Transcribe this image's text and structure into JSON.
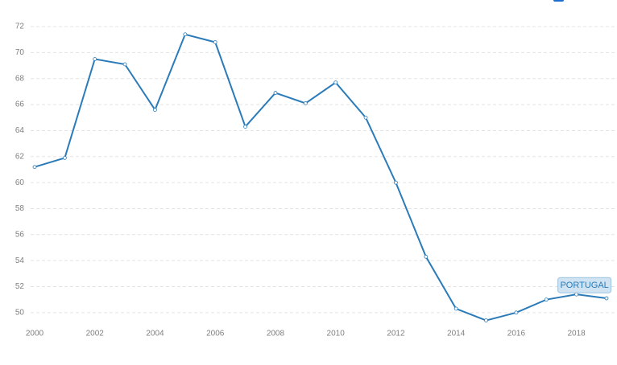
{
  "chart_data": {
    "type": "line",
    "x": [
      2000,
      2001,
      2002,
      2003,
      2004,
      2005,
      2006,
      2007,
      2008,
      2009,
      2010,
      2011,
      2012,
      2013,
      2014,
      2015,
      2016,
      2017,
      2018,
      2019
    ],
    "series": [
      {
        "name": "PORTUGAL",
        "color": "#2b7bb9",
        "values": [
          61.2,
          61.9,
          69.5,
          69.1,
          65.6,
          71.4,
          70.8,
          64.3,
          66.9,
          66.1,
          67.7,
          65.0,
          60.0,
          54.3,
          50.3,
          49.4,
          50.0,
          51.0,
          51.4,
          51.1
        ]
      }
    ],
    "xlim": [
      2000,
      2019
    ],
    "xticks": [
      2000,
      2002,
      2004,
      2006,
      2008,
      2010,
      2012,
      2014,
      2016,
      2018
    ],
    "ylim": [
      49,
      72.5
    ],
    "yticks": [
      50,
      52,
      54,
      56,
      58,
      60,
      62,
      64,
      66,
      68,
      70,
      72
    ],
    "grid": true
  }
}
